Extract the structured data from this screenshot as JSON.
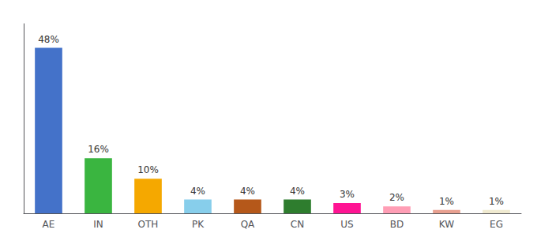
{
  "chart_data": {
    "type": "bar",
    "categories": [
      "AE",
      "IN",
      "OTH",
      "PK",
      "QA",
      "CN",
      "US",
      "BD",
      "KW",
      "EG"
    ],
    "values": [
      48,
      16,
      10,
      4,
      4,
      4,
      3,
      2,
      1,
      1
    ],
    "value_labels": [
      "48%",
      "16%",
      "10%",
      "4%",
      "4%",
      "4%",
      "3%",
      "2%",
      "1%",
      "1%"
    ],
    "colors": [
      "#4472c9",
      "#3ab540",
      "#f5a800",
      "#87ceeb",
      "#b5581a",
      "#2e7d2e",
      "#ff1493",
      "#ff9eb5",
      "#e8a090",
      "#f0ead0"
    ],
    "ylim": [
      0,
      55
    ],
    "data_labels": true,
    "tick_labels": "x",
    "grid": false
  }
}
